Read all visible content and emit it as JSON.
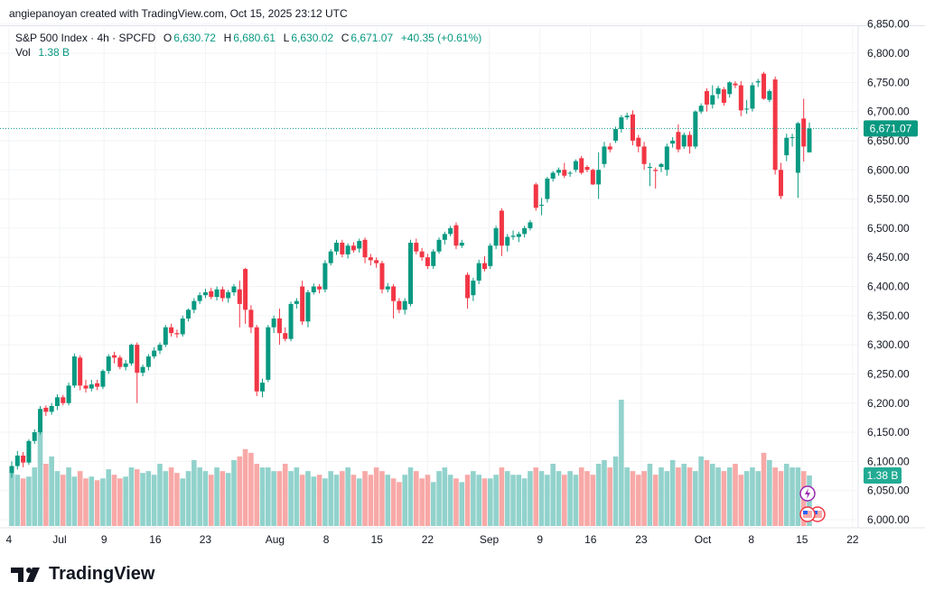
{
  "credit": "angiepanoyan created with TradingView.com, Oct 15, 2025 23:12 UTC",
  "legend": {
    "symbol": "S&P 500 Index · 4h · SPCFD",
    "o_label": "O",
    "o": "6,630.72",
    "h_label": "H",
    "h": "6,680.61",
    "l_label": "L",
    "l": "6,630.02",
    "c_label": "C",
    "c": "6,671.07",
    "change": "+40.35 (+0.61%)",
    "vol_label": "Vol",
    "vol": "1.38 B"
  },
  "logo": {
    "text": "TradingView"
  },
  "colors": {
    "up": "#089981",
    "down": "#F23645",
    "vol_up": "#92D2CC",
    "vol_down": "#F7A9A7",
    "grid": "#F2F3F5"
  },
  "chart_data": {
    "type": "candlestick",
    "title": "S&P 500 Index · 4h · SPCFD",
    "ylim": [
      5990,
      6860
    ],
    "y_ticks": [
      "6,000.00",
      "6,050.00",
      "6,100.00",
      "6,150.00",
      "6,200.00",
      "6,250.00",
      "6,300.00",
      "6,350.00",
      "6,400.00",
      "6,450.00",
      "6,500.00",
      "6,550.00",
      "6,600.00",
      "6,650.00",
      "6,700.00",
      "6,750.00",
      "6,800.00",
      "6,850.00"
    ],
    "y_tick_values": [
      6000,
      6050,
      6100,
      6150,
      6200,
      6250,
      6300,
      6350,
      6400,
      6450,
      6500,
      6550,
      6600,
      6650,
      6700,
      6750,
      6800,
      6850
    ],
    "x_ticks": [
      {
        "label": "4",
        "index": -0.5
      },
      {
        "label": "Jul",
        "index": 8.4
      },
      {
        "label": "9",
        "index": 16.2
      },
      {
        "label": "16",
        "index": 25.2
      },
      {
        "label": "23",
        "index": 34
      },
      {
        "label": "Aug",
        "index": 46.2
      },
      {
        "label": "8",
        "index": 55.2
      },
      {
        "label": "15",
        "index": 64.1
      },
      {
        "label": "22",
        "index": 73
      },
      {
        "label": "Sep",
        "index": 83.8
      },
      {
        "label": "9",
        "index": 92.7
      },
      {
        "label": "16",
        "index": 101.6
      },
      {
        "label": "23",
        "index": 110.5
      },
      {
        "label": "Oct",
        "index": 121.3
      },
      {
        "label": "8",
        "index": 129.8
      },
      {
        "label": "15",
        "index": 138.7
      },
      {
        "label": "22",
        "index": 147.6
      }
    ],
    "x_range": [
      -2,
      148.5
    ],
    "last_price": 6671.07,
    "last_price_label": "6,671.07",
    "last_volume_label": "1.38 B",
    "candles": [
      [
        6080,
        6100,
        6072,
        6092
      ],
      [
        6092,
        6118,
        6086,
        6110
      ],
      [
        6110,
        6116,
        6090,
        6098
      ],
      [
        6098,
        6138,
        6094,
        6135
      ],
      [
        6135,
        6155,
        6130,
        6150
      ],
      [
        6150,
        6195,
        6146,
        6190
      ],
      [
        6192,
        6196,
        6178,
        6185
      ],
      [
        6185,
        6200,
        6180,
        6195
      ],
      [
        6195,
        6215,
        6188,
        6210
      ],
      [
        6210,
        6214,
        6196,
        6200
      ],
      [
        6200,
        6235,
        6196,
        6230
      ],
      [
        6230,
        6285,
        6226,
        6280
      ],
      [
        6278,
        6282,
        6222,
        6230
      ],
      [
        6230,
        6240,
        6218,
        6225
      ],
      [
        6225,
        6240,
        6220,
        6232
      ],
      [
        6234,
        6240,
        6222,
        6228
      ],
      [
        6228,
        6258,
        6224,
        6255
      ],
      [
        6255,
        6284,
        6250,
        6280
      ],
      [
        6282,
        6288,
        6268,
        6278
      ],
      [
        6278,
        6282,
        6258,
        6262
      ],
      [
        6262,
        6274,
        6256,
        6268
      ],
      [
        6268,
        6302,
        6264,
        6300
      ],
      [
        6300,
        6304,
        6200,
        6252
      ],
      [
        6252,
        6266,
        6246,
        6262
      ],
      [
        6262,
        6284,
        6256,
        6280
      ],
      [
        6280,
        6296,
        6276,
        6290
      ],
      [
        6290,
        6304,
        6284,
        6300
      ],
      [
        6300,
        6334,
        6296,
        6330
      ],
      [
        6330,
        6336,
        6314,
        6320
      ],
      [
        6320,
        6326,
        6312,
        6318
      ],
      [
        6318,
        6350,
        6314,
        6345
      ],
      [
        6345,
        6362,
        6340,
        6360
      ],
      [
        6360,
        6380,
        6354,
        6375
      ],
      [
        6375,
        6390,
        6370,
        6385
      ],
      [
        6385,
        6396,
        6380,
        6390
      ],
      [
        6392,
        6398,
        6378,
        6382
      ],
      [
        6382,
        6400,
        6376,
        6395
      ],
      [
        6395,
        6400,
        6374,
        6380
      ],
      [
        6380,
        6394,
        6372,
        6390
      ],
      [
        6390,
        6404,
        6384,
        6400
      ],
      [
        6395,
        6410,
        6330,
        6370
      ],
      [
        6430,
        6432,
        6336,
        6360
      ],
      [
        6360,
        6368,
        6320,
        6330
      ],
      [
        6330,
        6334,
        6212,
        6220
      ],
      [
        6220,
        6242,
        6210,
        6235
      ],
      [
        6240,
        6334,
        6236,
        6330
      ],
      [
        6330,
        6350,
        6320,
        6345
      ],
      [
        6345,
        6362,
        6300,
        6320
      ],
      [
        6320,
        6330,
        6306,
        6310
      ],
      [
        6310,
        6374,
        6306,
        6370
      ],
      [
        6370,
        6380,
        6362,
        6375
      ],
      [
        6400,
        6410,
        6334,
        6340
      ],
      [
        6340,
        6394,
        6330,
        6390
      ],
      [
        6390,
        6405,
        6386,
        6400
      ],
      [
        6400,
        6404,
        6388,
        6395
      ],
      [
        6395,
        6445,
        6390,
        6440
      ],
      [
        6440,
        6464,
        6436,
        6460
      ],
      [
        6460,
        6480,
        6454,
        6475
      ],
      [
        6475,
        6480,
        6450,
        6455
      ],
      [
        6455,
        6474,
        6448,
        6470
      ],
      [
        6470,
        6476,
        6458,
        6462
      ],
      [
        6465,
        6482,
        6458,
        6478
      ],
      [
        6480,
        6484,
        6440,
        6450
      ],
      [
        6450,
        6456,
        6436,
        6445
      ],
      [
        6445,
        6450,
        6432,
        6440
      ],
      [
        6440,
        6444,
        6388,
        6395
      ],
      [
        6395,
        6406,
        6390,
        6400
      ],
      [
        6400,
        6404,
        6345,
        6375
      ],
      [
        6375,
        6380,
        6354,
        6360
      ],
      [
        6360,
        6380,
        6352,
        6375
      ],
      [
        6370,
        6480,
        6366,
        6475
      ],
      [
        6475,
        6482,
        6455,
        6460
      ],
      [
        6460,
        6466,
        6444,
        6450
      ],
      [
        6450,
        6456,
        6430,
        6435
      ],
      [
        6435,
        6464,
        6430,
        6460
      ],
      [
        6460,
        6484,
        6456,
        6480
      ],
      [
        6480,
        6494,
        6472,
        6490
      ],
      [
        6490,
        6504,
        6486,
        6500
      ],
      [
        6505,
        6510,
        6464,
        6470
      ],
      [
        6470,
        6480,
        6466,
        6475
      ],
      [
        6420,
        6424,
        6362,
        6380
      ],
      [
        6385,
        6415,
        6375,
        6410
      ],
      [
        6410,
        6446,
        6404,
        6440
      ],
      [
        6440,
        6452,
        6426,
        6430
      ],
      [
        6435,
        6474,
        6430,
        6470
      ],
      [
        6470,
        6504,
        6464,
        6500
      ],
      [
        6530,
        6534,
        6452,
        6470
      ],
      [
        6470,
        6490,
        6460,
        6485
      ],
      [
        6485,
        6496,
        6480,
        6487
      ],
      [
        6485,
        6494,
        6476,
        6490
      ],
      [
        6490,
        6504,
        6484,
        6500
      ],
      [
        6500,
        6514,
        6496,
        6510
      ],
      [
        6575,
        6578,
        6530,
        6535
      ],
      [
        6540,
        6552,
        6522,
        6540
      ],
      [
        6550,
        6588,
        6544,
        6585
      ],
      [
        6585,
        6598,
        6580,
        6595
      ],
      [
        6595,
        6604,
        6590,
        6600
      ],
      [
        6600,
        6612,
        6586,
        6590
      ],
      [
        6595,
        6598,
        6588,
        6595
      ],
      [
        6600,
        6618,
        6596,
        6615
      ],
      [
        6620,
        6624,
        6592,
        6595
      ],
      [
        6605,
        6608,
        6596,
        6600
      ],
      [
        6600,
        6602,
        6574,
        6575
      ],
      [
        6575,
        6630,
        6550,
        6600
      ],
      [
        6610,
        6648,
        6604,
        6640
      ],
      [
        6640,
        6646,
        6630,
        6635
      ],
      [
        6650,
        6674,
        6646,
        6670
      ],
      [
        6670,
        6694,
        6664,
        6690
      ],
      [
        6690,
        6698,
        6686,
        6693
      ],
      [
        6695,
        6702,
        6642,
        6650
      ],
      [
        6655,
        6660,
        6630,
        6640
      ],
      [
        6640,
        6648,
        6600,
        6610
      ],
      [
        6605,
        6612,
        6572,
        6605
      ],
      [
        6600,
        6604,
        6568,
        6598
      ],
      [
        6605,
        6612,
        6596,
        6610
      ],
      [
        6600,
        6645,
        6590,
        6640
      ],
      [
        6645,
        6656,
        6638,
        6650
      ],
      [
        6665,
        6678,
        6630,
        6635
      ],
      [
        6640,
        6664,
        6636,
        6660
      ],
      [
        6660,
        6666,
        6628,
        6640
      ],
      [
        6640,
        6702,
        6636,
        6700
      ],
      [
        6700,
        6714,
        6696,
        6710
      ],
      [
        6735,
        6740,
        6700,
        6712
      ],
      [
        6712,
        6745,
        6705,
        6728
      ],
      [
        6730,
        6744,
        6722,
        6740
      ],
      [
        6738,
        6742,
        6710,
        6715
      ],
      [
        6730,
        6752,
        6724,
        6750
      ],
      [
        6748,
        6752,
        6740,
        6745
      ],
      [
        6745,
        6752,
        6692,
        6702
      ],
      [
        6705,
        6720,
        6696,
        6705
      ],
      [
        6705,
        6750,
        6700,
        6745
      ],
      [
        6750,
        6756,
        6742,
        6752
      ],
      [
        6765,
        6768,
        6720,
        6722
      ],
      [
        6720,
        6738,
        6716,
        6735
      ],
      [
        6755,
        6760,
        6592,
        6600
      ],
      [
        6600,
        6612,
        6550,
        6555
      ],
      [
        6625,
        6662,
        6615,
        6655
      ],
      [
        6655,
        6662,
        6640,
        6656
      ],
      [
        6595,
        6682,
        6552,
        6680
      ],
      [
        6688,
        6722,
        6614,
        6640
      ],
      [
        6630,
        6681,
        6630,
        6671
      ]
    ],
    "volume": [
      1.45,
      1.4,
      1.3,
      1.35,
      1.6,
      2.6,
      1.7,
      1.9,
      1.5,
      1.4,
      1.6,
      1.35,
      1.5,
      1.3,
      1.35,
      1.25,
      1.3,
      1.55,
      1.4,
      1.3,
      1.35,
      1.6,
      1.55,
      1.45,
      1.5,
      1.4,
      1.7,
      1.5,
      1.6,
      1.45,
      1.3,
      1.5,
      1.8,
      1.6,
      1.5,
      1.4,
      1.6,
      1.5,
      1.45,
      1.8,
      1.9,
      2.1,
      2.0,
      1.7,
      1.6,
      1.6,
      1.5,
      1.5,
      1.7,
      1.5,
      1.6,
      1.4,
      1.5,
      1.35,
      1.4,
      1.3,
      1.5,
      1.4,
      1.5,
      1.6,
      1.4,
      1.3,
      1.5,
      1.4,
      1.6,
      1.5,
      1.4,
      1.3,
      1.2,
      1.4,
      1.6,
      1.5,
      1.3,
      1.4,
      1.2,
      1.5,
      1.6,
      1.4,
      1.3,
      1.2,
      1.4,
      1.5,
      1.4,
      1.3,
      1.3,
      1.4,
      1.6,
      1.5,
      1.4,
      1.4,
      1.3,
      1.5,
      1.6,
      1.5,
      1.4,
      1.7,
      1.5,
      1.4,
      1.5,
      1.4,
      1.6,
      1.5,
      1.4,
      1.7,
      1.8,
      1.6,
      1.9,
      3.45,
      1.6,
      1.5,
      1.4,
      1.5,
      1.7,
      1.4,
      1.6,
      1.5,
      1.8,
      1.6,
      1.7,
      1.6,
      1.5,
      1.9,
      1.8,
      1.7,
      1.6,
      1.5,
      1.6,
      1.7,
      1.4,
      1.5,
      1.6,
      1.5,
      2.0,
      1.8,
      1.6,
      1.5,
      1.7,
      1.6,
      1.6,
      1.5,
      1.38
    ]
  }
}
